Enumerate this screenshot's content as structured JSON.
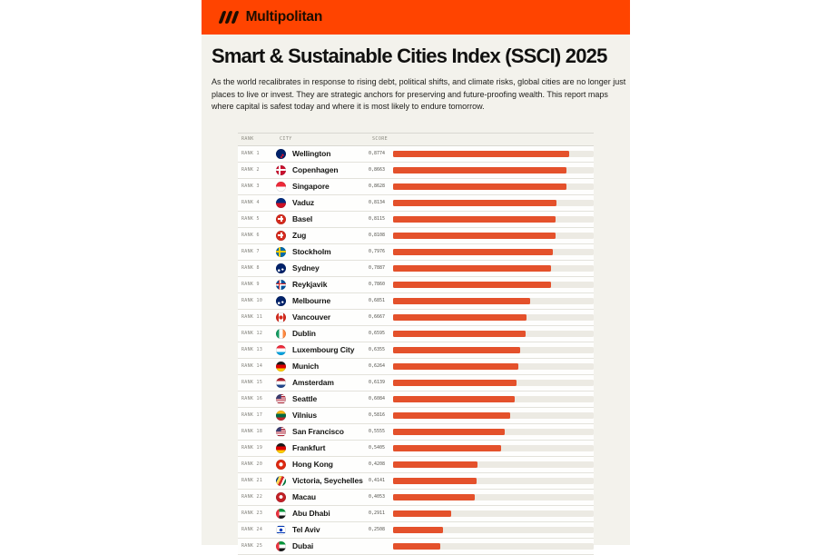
{
  "brand": {
    "name": "Multipolitan",
    "band_color": "#FF4400"
  },
  "page": {
    "title": "Smart & Sustainable Cities Index (SSCI) 2025",
    "intro": "As the world recalibrates in response to rising debt, political shifts, and climate risks, global cities are no longer just places to live or invest. They are strategic anchors for preserving and future-proofing wealth. This report maps where capital is safest today and where it is most likely to endure tomorrow."
  },
  "table": {
    "headers": {
      "rank": "RANK",
      "city": "CITY",
      "score": "SCORE"
    },
    "rows": [
      {
        "rank": "RANK 1",
        "city": "Wellington",
        "flag": "nz",
        "score": "0,8774",
        "value": 0.8774
      },
      {
        "rank": "RANK 2",
        "city": "Copenhagen",
        "flag": "dk",
        "score": "0,8663",
        "value": 0.8663
      },
      {
        "rank": "RANK 3",
        "city": "Singapore",
        "flag": "sg",
        "score": "0,8628",
        "value": 0.8628
      },
      {
        "rank": "RANK 4",
        "city": "Vaduz",
        "flag": "li",
        "score": "0,8134",
        "value": 0.8134
      },
      {
        "rank": "RANK 5",
        "city": "Basel",
        "flag": "ch",
        "score": "0,8115",
        "value": 0.8115
      },
      {
        "rank": "RANK 6",
        "city": "Zug",
        "flag": "ch",
        "score": "0,8108",
        "value": 0.8108
      },
      {
        "rank": "RANK 7",
        "city": "Stockholm",
        "flag": "se",
        "score": "0,7976",
        "value": 0.7976
      },
      {
        "rank": "RANK 8",
        "city": "Sydney",
        "flag": "au",
        "score": "0,7887",
        "value": 0.7887
      },
      {
        "rank": "RANK 9",
        "city": "Reykjavik",
        "flag": "is",
        "score": "0,7860",
        "value": 0.786
      },
      {
        "rank": "RANK 10",
        "city": "Melbourne",
        "flag": "au",
        "score": "0,6851",
        "value": 0.6851
      },
      {
        "rank": "RANK 11",
        "city": "Vancouver",
        "flag": "ca",
        "score": "0,6667",
        "value": 0.6667
      },
      {
        "rank": "RANK 12",
        "city": "Dublin",
        "flag": "ie",
        "score": "0,6595",
        "value": 0.6595
      },
      {
        "rank": "RANK 13",
        "city": "Luxembourg City",
        "flag": "lu",
        "score": "0,6355",
        "value": 0.6355
      },
      {
        "rank": "RANK 14",
        "city": "Munich",
        "flag": "de",
        "score": "0,6264",
        "value": 0.6264
      },
      {
        "rank": "RANK 15",
        "city": "Amsterdam",
        "flag": "nl",
        "score": "0,6139",
        "value": 0.6139
      },
      {
        "rank": "RANK 16",
        "city": "Seattle",
        "flag": "us",
        "score": "0,6084",
        "value": 0.6084
      },
      {
        "rank": "RANK 17",
        "city": "Vilnius",
        "flag": "lt",
        "score": "0,5816",
        "value": 0.5816
      },
      {
        "rank": "RANK 18",
        "city": "San Francisco",
        "flag": "us",
        "score": "0,5555",
        "value": 0.5555
      },
      {
        "rank": "RANK 19",
        "city": "Frankfurt",
        "flag": "de",
        "score": "0,5405",
        "value": 0.5405
      },
      {
        "rank": "RANK 20",
        "city": "Hong Kong",
        "flag": "hk",
        "score": "0,4208",
        "value": 0.4208
      },
      {
        "rank": "RANK 21",
        "city": "Victoria, Seychelles",
        "flag": "sc",
        "score": "0,4141",
        "value": 0.4141
      },
      {
        "rank": "RANK 22",
        "city": "Macau",
        "flag": "mo",
        "score": "0,4053",
        "value": 0.4053
      },
      {
        "rank": "RANK 23",
        "city": "Abu Dhabi",
        "flag": "ae",
        "score": "0,2911",
        "value": 0.2911
      },
      {
        "rank": "RANK 24",
        "city": "Tel Aviv",
        "flag": "il",
        "score": "0,2508",
        "value": 0.2508
      },
      {
        "rank": "RANK 25",
        "city": "Dubai",
        "flag": "ae",
        "score": "",
        "value": 0.235
      }
    ]
  },
  "chart_data": {
    "type": "bar",
    "orientation": "horizontal",
    "title": "Smart & Sustainable Cities Index (SSCI) 2025",
    "categories": [
      "Wellington",
      "Copenhagen",
      "Singapore",
      "Vaduz",
      "Basel",
      "Zug",
      "Stockholm",
      "Sydney",
      "Reykjavik",
      "Melbourne",
      "Vancouver",
      "Dublin",
      "Luxembourg City",
      "Munich",
      "Amsterdam",
      "Seattle",
      "Vilnius",
      "San Francisco",
      "Frankfurt",
      "Hong Kong",
      "Victoria, Seychelles",
      "Macau",
      "Abu Dhabi",
      "Tel Aviv",
      "Dubai"
    ],
    "values": [
      0.8774,
      0.8663,
      0.8628,
      0.8134,
      0.8115,
      0.8108,
      0.7976,
      0.7887,
      0.786,
      0.6851,
      0.6667,
      0.6595,
      0.6355,
      0.6264,
      0.6139,
      0.6084,
      0.5816,
      0.5555,
      0.5405,
      0.4208,
      0.4141,
      0.4053,
      0.2911,
      0.2508,
      0.235
    ],
    "xlabel": "SCORE",
    "ylabel": "CITY",
    "xlim": [
      0,
      1
    ],
    "grid": false,
    "legend": false,
    "bar_color": "#E4512B",
    "track_color": "#ECEAE3"
  }
}
